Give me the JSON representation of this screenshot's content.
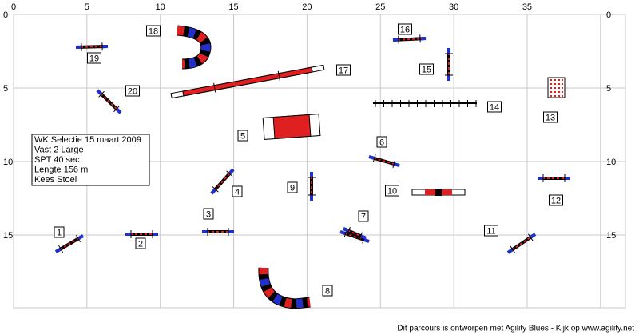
{
  "grid": {
    "x_ticks": [
      0,
      5,
      10,
      15,
      20,
      25,
      30,
      35
    ],
    "y_ticks": [
      0,
      5,
      10,
      15
    ]
  },
  "obstacles": [
    {
      "label": "1"
    },
    {
      "label": "2"
    },
    {
      "label": "3"
    },
    {
      "label": "4"
    },
    {
      "label": "5"
    },
    {
      "label": "6"
    },
    {
      "label": "7"
    },
    {
      "label": "8"
    },
    {
      "label": "9"
    },
    {
      "label": "10"
    },
    {
      "label": "11"
    },
    {
      "label": "12"
    },
    {
      "label": "13"
    },
    {
      "label": "14"
    },
    {
      "label": "15"
    },
    {
      "label": "16"
    },
    {
      "label": "17"
    },
    {
      "label": "18"
    },
    {
      "label": "19"
    },
    {
      "label": "20"
    }
  ],
  "info": {
    "lines": [
      "WK Selectie 15 maart 2009",
      "Vast 2 Large",
      "SPT 40 sec",
      "Lengte 156 m",
      "Kees Stoel"
    ]
  },
  "footer": "Dit parcours is ontworpen met Agility Blues - Kijk op www.agility.net"
}
